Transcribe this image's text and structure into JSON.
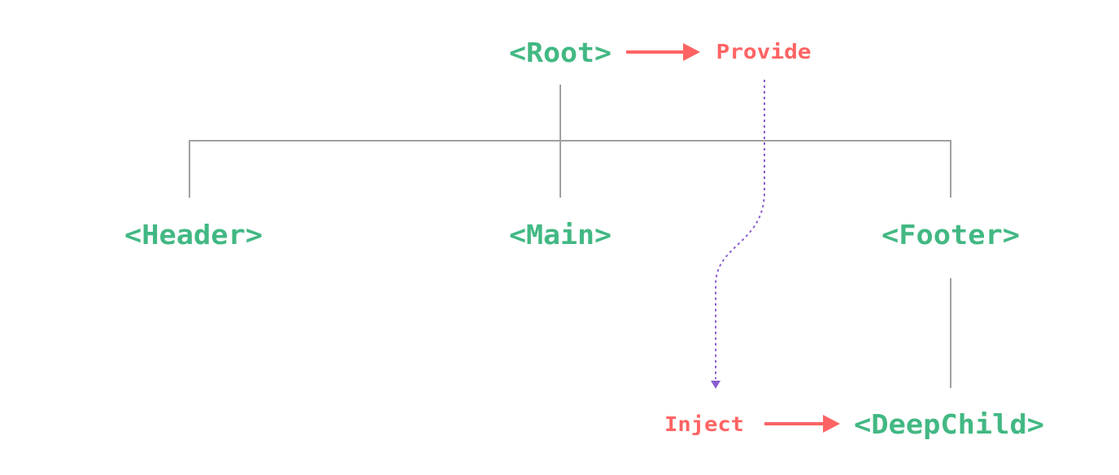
{
  "nodes": {
    "root": "<Root>",
    "header": "<Header>",
    "main": "<Main>",
    "footer": "<Footer>",
    "deep_child": "<DeepChild>"
  },
  "labels": {
    "provide": "Provide",
    "inject": "Inject"
  },
  "colors": {
    "component": "#42b883",
    "action": "#ff6363",
    "injection_path": "#8a5cd0",
    "tree_line": "#a0a0a0"
  }
}
